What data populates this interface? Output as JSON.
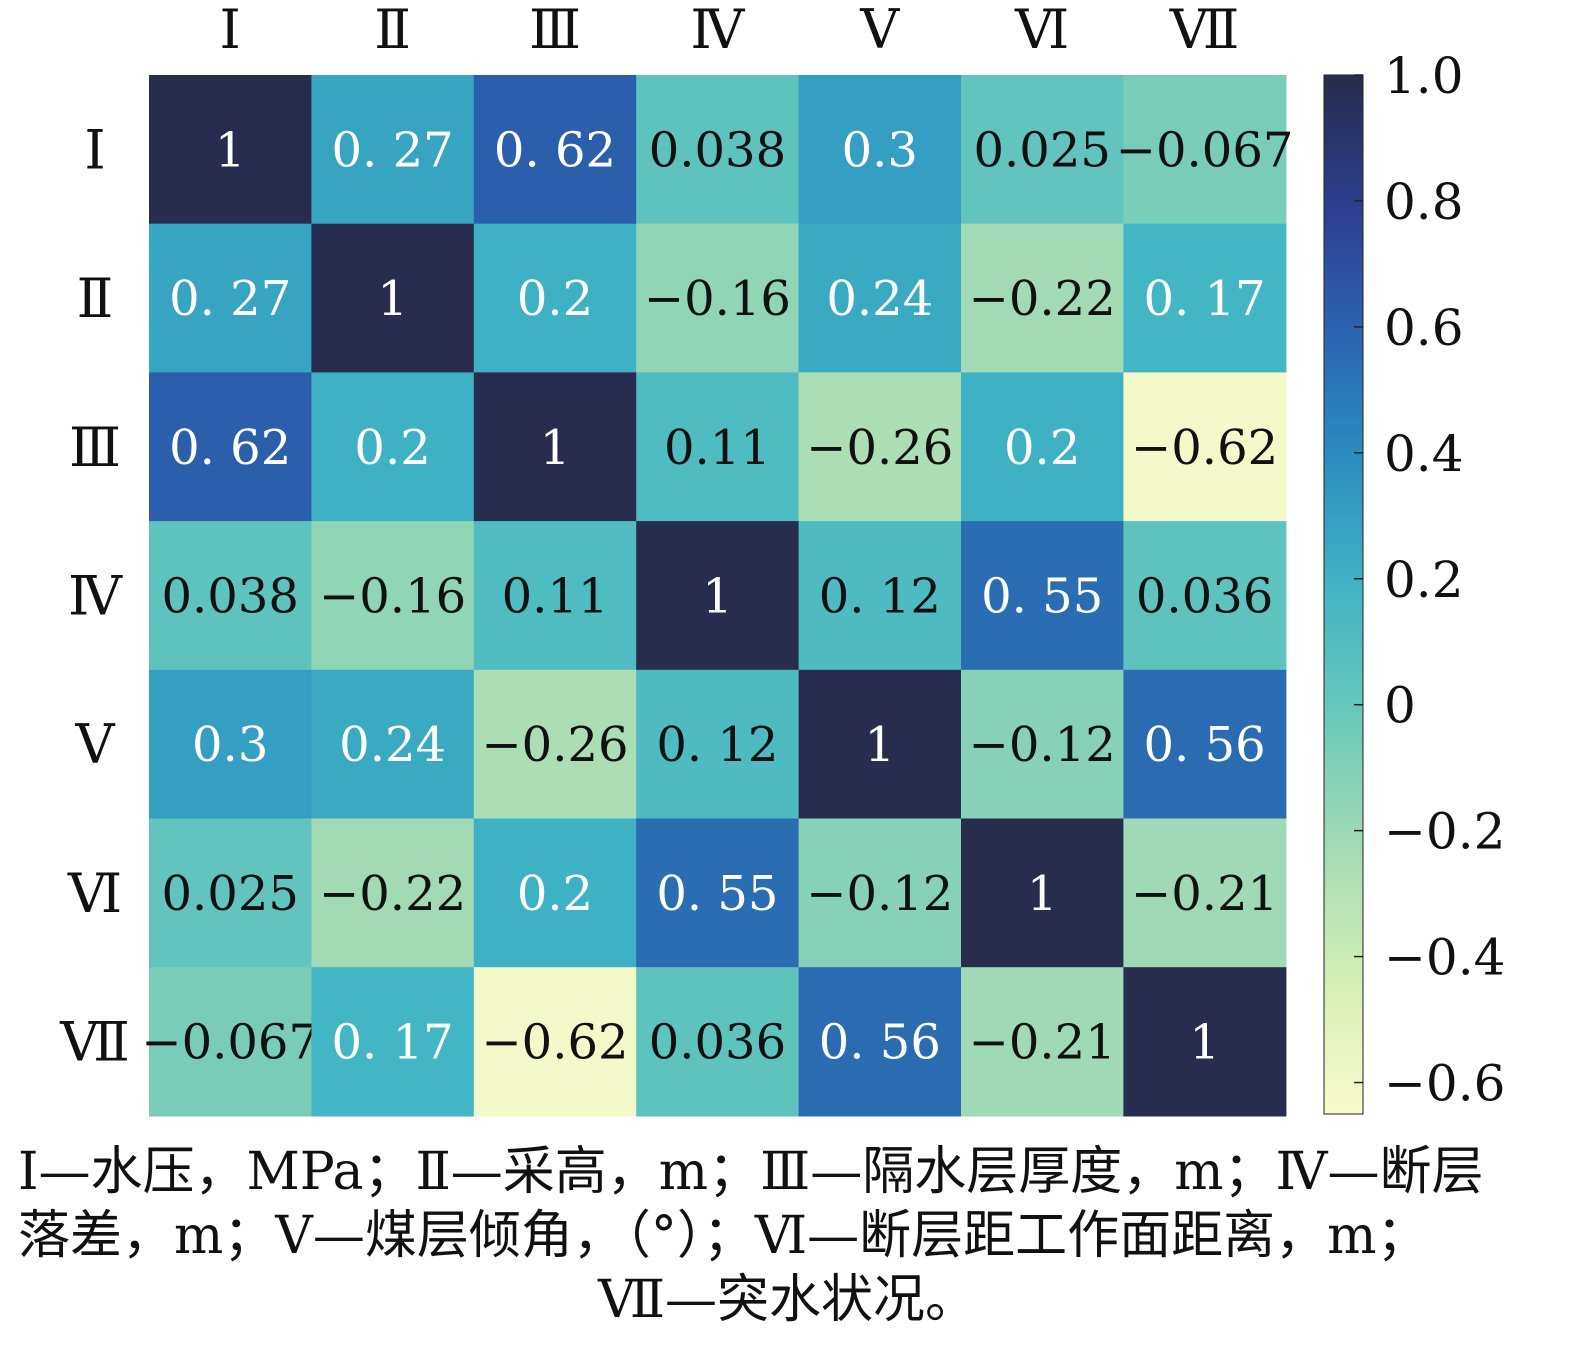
{
  "chart_data": {
    "type": "heatmap",
    "labels": [
      "Ⅰ",
      "Ⅱ",
      "Ⅲ",
      "Ⅳ",
      "Ⅴ",
      "Ⅵ",
      "Ⅶ"
    ],
    "values": [
      [
        1,
        0.27,
        0.62,
        0.038,
        0.3,
        0.025,
        -0.067
      ],
      [
        0.27,
        1,
        0.2,
        -0.16,
        0.24,
        -0.22,
        0.17
      ],
      [
        0.62,
        0.2,
        1,
        0.11,
        -0.26,
        0.2,
        -0.62
      ],
      [
        0.038,
        -0.16,
        0.11,
        1,
        0.12,
        0.55,
        0.036
      ],
      [
        0.3,
        0.24,
        -0.26,
        0.12,
        1,
        -0.12,
        0.56
      ],
      [
        0.025,
        -0.22,
        0.2,
        0.55,
        -0.12,
        1,
        -0.21
      ],
      [
        -0.067,
        0.17,
        -0.62,
        0.036,
        0.56,
        -0.21,
        1
      ]
    ],
    "cell_labels": [
      [
        "1",
        "0. 27",
        "0. 62",
        "0.038",
        "0.3",
        "0.025",
        "−0.067"
      ],
      [
        "0. 27",
        "1",
        "0.2",
        "−0.16",
        "0.24",
        "−0.22",
        "0. 17"
      ],
      [
        "0. 62",
        "0.2",
        "1",
        "0.11",
        "−0.26",
        "0.2",
        "−0.62"
      ],
      [
        "0.038",
        "−0.16",
        "0.11",
        "1",
        "0. 12",
        "0. 55",
        "0.036"
      ],
      [
        "0.3",
        "0.24",
        "−0.26",
        "0. 12",
        "1",
        "−0.12",
        "0. 56"
      ],
      [
        "0.025",
        "−0.22",
        "0.2",
        "0. 55",
        "−0.12",
        "1",
        "−0.21"
      ],
      [
        "−0.067",
        "0. 17",
        "−0.62",
        "0.036",
        "0. 56",
        "−0.21",
        "1"
      ]
    ],
    "colorbar": {
      "range": [
        -0.65,
        1.0
      ],
      "ticks": [
        1.0,
        0.8,
        0.6,
        0.4,
        0.2,
        0,
        -0.2,
        -0.4,
        -0.6
      ],
      "tick_labels": [
        "1.0",
        "0.8",
        "0.6",
        "0.4",
        "0.2",
        "0",
        "−0.2",
        "−0.4",
        "−0.6"
      ],
      "colormap": [
        "#f9fbcd",
        "#d6efb3",
        "#a6dcb5",
        "#6ec9b9",
        "#41b6c4",
        "#2c90c0",
        "#2b65b0",
        "#2d3e8e",
        "#282c4e"
      ]
    },
    "text_colors": {
      "light": "#ffffff",
      "dark": "#111111"
    }
  },
  "caption": {
    "line1": "Ⅰ—水压，MPa；Ⅱ—采高，m；Ⅲ—隔水层厚度，m；Ⅳ—断层",
    "line2": "落差，m；Ⅴ—煤层倾角，（°）；Ⅵ—断层距工作面距离，m；",
    "line3": "Ⅶ—突水状况。"
  }
}
